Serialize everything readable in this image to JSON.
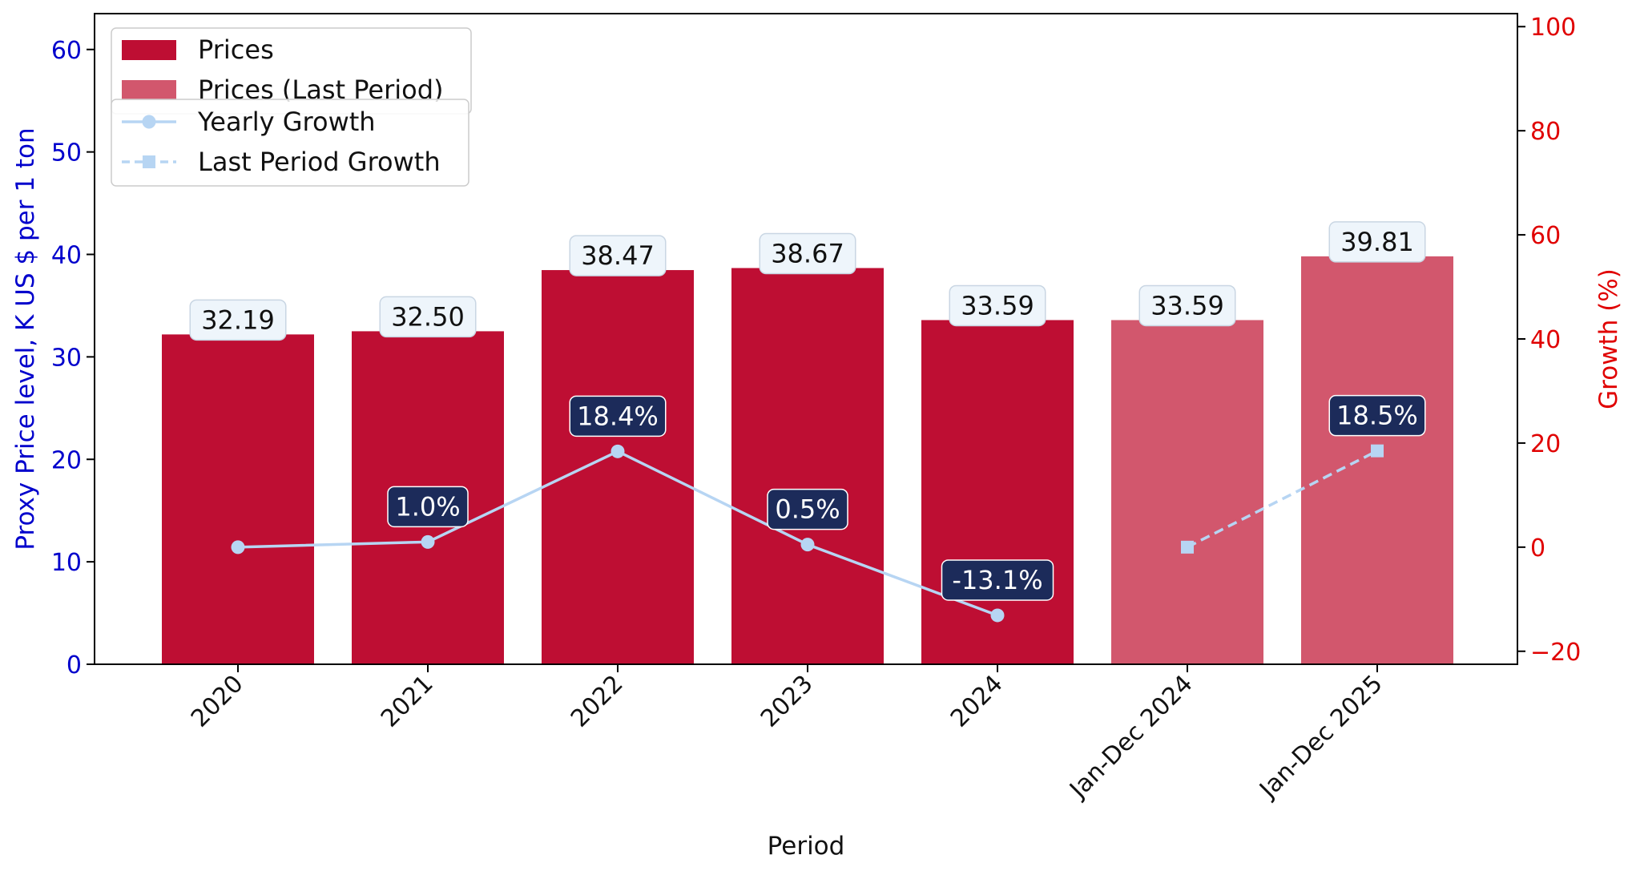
{
  "chart_data": {
    "type": "bar",
    "categories": [
      "2020",
      "2021",
      "2022",
      "2023",
      "2024",
      "Jan-Dec 2024",
      "Jan-Dec 2025"
    ],
    "xlabel": "Period",
    "ylabel": "Proxy Price level, K US $ per 1 ton",
    "y2label": "Growth (%)",
    "ylim": [
      0,
      63.5
    ],
    "y2lim": [
      -22.5,
      102.5
    ],
    "yticks": [
      0,
      10,
      20,
      30,
      40,
      50,
      60
    ],
    "y2ticks": [
      -20,
      0,
      20,
      40,
      60,
      80,
      100
    ],
    "grid": false,
    "series": [
      {
        "name": "Prices",
        "kind": "bar",
        "axis": "left",
        "values": [
          32.19,
          32.5,
          38.47,
          38.67,
          33.59,
          null,
          null
        ],
        "labels": [
          "32.19",
          "32.50",
          "38.47",
          "38.67",
          "33.59",
          "",
          ""
        ],
        "color": "#be0e33"
      },
      {
        "name": "Prices (Last Period)",
        "kind": "bar",
        "axis": "left",
        "values": [
          null,
          null,
          null,
          null,
          null,
          33.59,
          39.81
        ],
        "labels": [
          "",
          "",
          "",
          "",
          "",
          "33.59",
          "39.81"
        ],
        "color": "#d2576d"
      },
      {
        "name": "Yearly Growth",
        "kind": "line",
        "axis": "right",
        "marker": "circle",
        "linestyle": "solid",
        "values": [
          0.0,
          1.0,
          18.4,
          0.5,
          -13.1,
          null,
          null
        ],
        "labels": [
          "",
          "1.0%",
          "18.4%",
          "0.5%",
          "-13.1%",
          "",
          ""
        ],
        "color": "#b7d5f3"
      },
      {
        "name": "Last Period Growth",
        "kind": "line",
        "axis": "right",
        "marker": "square",
        "linestyle": "dashed",
        "values": [
          null,
          null,
          null,
          null,
          null,
          0.0,
          18.5
        ],
        "labels": [
          "",
          "",
          "",
          "",
          "",
          "",
          "18.5%"
        ],
        "color": "#b7d5f3"
      }
    ],
    "legend_placement": "top-left",
    "colors": {
      "left_axis": "#0000cc",
      "right_axis": "#e00000",
      "growth_label_bg": "#1c2b5a",
      "bar_label_bg": "#eef5fb"
    }
  }
}
